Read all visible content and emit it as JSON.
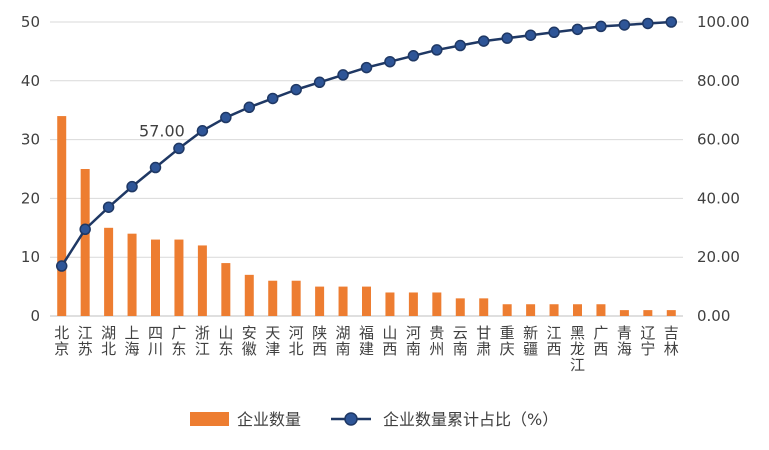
{
  "chart_data": {
    "type": "bar+line",
    "categories": [
      "北京",
      "江苏",
      "湖北",
      "上海",
      "四川",
      "广东",
      "浙江",
      "山东",
      "安徽",
      "天津",
      "河北",
      "陕西",
      "湖南",
      "福建",
      "山西",
      "河南",
      "贵州",
      "云南",
      "甘肃",
      "重庆",
      "新疆",
      "江西",
      "黑龙江",
      "广西",
      "青海",
      "辽宁",
      "吉林"
    ],
    "series": [
      {
        "name": "企业数量",
        "type": "bar",
        "axis": "left",
        "color": "#ED7D31",
        "values": [
          34,
          25,
          15,
          14,
          13,
          13,
          12,
          9,
          7,
          6,
          6,
          5,
          5,
          5,
          4,
          4,
          4,
          3,
          3,
          2,
          2,
          2,
          2,
          2,
          1,
          1,
          1
        ]
      },
      {
        "name": "企业数量累计占比（%）",
        "type": "line",
        "axis": "right",
        "color": "#1F3864",
        "marker_color": "#2E5597",
        "values": [
          17,
          29.5,
          37,
          44,
          50.5,
          57,
          63,
          67.5,
          71,
          74,
          77,
          79.5,
          82,
          84.5,
          86.5,
          88.5,
          90.5,
          92,
          93.5,
          94.5,
          95.5,
          96.5,
          97.5,
          98.5,
          99,
          99.5,
          100
        ]
      }
    ],
    "y_left": {
      "ylim": [
        0,
        50
      ],
      "ticks": [
        "0",
        "10",
        "20",
        "30",
        "40",
        "50"
      ]
    },
    "y_right": {
      "ylim": [
        0,
        100
      ],
      "ticks": [
        "0.00",
        "20.00",
        "40.00",
        "60.00",
        "80.00",
        "100.00"
      ]
    },
    "data_labels": [
      {
        "series": 1,
        "index": 5,
        "text": "57.00"
      }
    ],
    "grid": true,
    "legend": "bottom"
  }
}
